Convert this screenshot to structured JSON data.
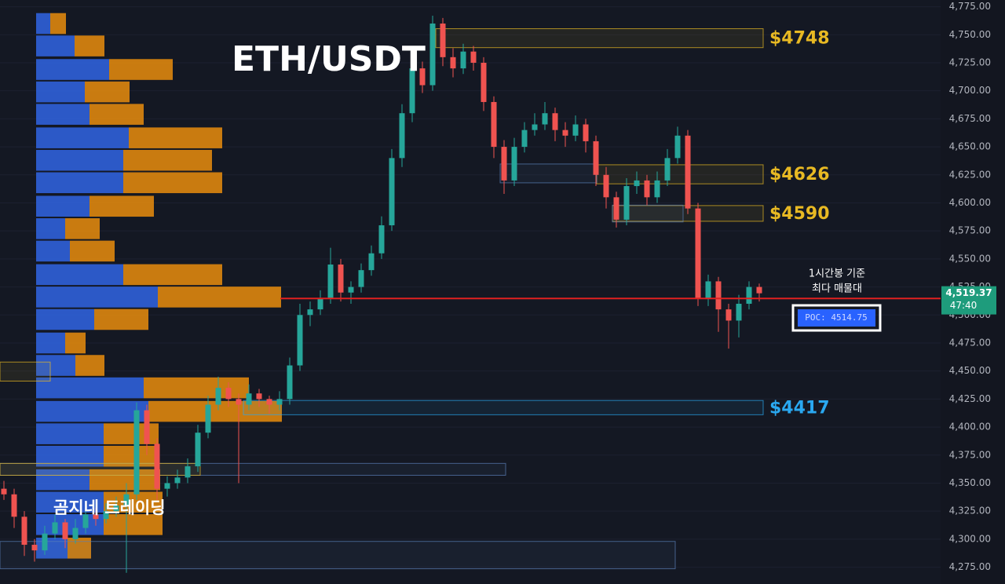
{
  "chart_data": {
    "type": "candlestick",
    "title": "ETH/USDT",
    "watermark": "곰지네 트레이딩",
    "ylim": [
      4260,
      4781
    ],
    "yticks": [
      {
        "value": 4275,
        "label": "4,275.00"
      },
      {
        "value": 4300,
        "label": "4,300.00"
      },
      {
        "value": 4325,
        "label": "4,325.00"
      },
      {
        "value": 4350,
        "label": "4,350.00"
      },
      {
        "value": 4375,
        "label": "4,375.00"
      },
      {
        "value": 4400,
        "label": "4,400.00"
      },
      {
        "value": 4425,
        "label": "4,425.00"
      },
      {
        "value": 4450,
        "label": "4,450.00"
      },
      {
        "value": 4475,
        "label": "4,475.00"
      },
      {
        "value": 4500,
        "label": "4,500.00"
      },
      {
        "value": 4525,
        "label": "4,525.00"
      },
      {
        "value": 4550,
        "label": "4,550.00"
      },
      {
        "value": 4575,
        "label": "4,575.00"
      },
      {
        "value": 4600,
        "label": "4,600.00"
      },
      {
        "value": 4625,
        "label": "4,625.00"
      },
      {
        "value": 4650,
        "label": "4,650.00"
      },
      {
        "value": 4675,
        "label": "4,675.00"
      },
      {
        "value": 4700,
        "label": "4,700.00"
      },
      {
        "value": 4725,
        "label": "4,725.00"
      },
      {
        "value": 4750,
        "label": "4,750.00"
      },
      {
        "value": 4775,
        "label": "4,775.00"
      }
    ],
    "up_color": "#26a69a",
    "down_color": "#ef5350",
    "candles": [
      [
        4345,
        4352,
        4335,
        4340
      ],
      [
        4340,
        4345,
        4310,
        4320
      ],
      [
        4320,
        4325,
        4285,
        4295
      ],
      [
        4295,
        4300,
        4280,
        4290
      ],
      [
        4290,
        4312,
        4286,
        4305
      ],
      [
        4305,
        4322,
        4300,
        4315
      ],
      [
        4315,
        4318,
        4292,
        4300
      ],
      [
        4300,
        4318,
        4296,
        4310
      ],
      [
        4310,
        4330,
        4305,
        4322
      ],
      [
        4322,
        4328,
        4312,
        4318
      ],
      [
        4318,
        4332,
        4314,
        4325
      ],
      [
        4325,
        4338,
        4320,
        4330
      ],
      [
        4330,
        4350,
        4270,
        4340
      ],
      [
        4340,
        4422,
        4335,
        4415
      ],
      [
        4415,
        4420,
        4375,
        4385
      ],
      [
        4385,
        4390,
        4335,
        4345
      ],
      [
        4345,
        4356,
        4338,
        4350
      ],
      [
        4350,
        4362,
        4345,
        4355
      ],
      [
        4355,
        4372,
        4350,
        4365
      ],
      [
        4365,
        4402,
        4360,
        4395
      ],
      [
        4395,
        4428,
        4390,
        4420
      ],
      [
        4420,
        4445,
        4415,
        4435
      ],
      [
        4435,
        4440,
        4418,
        4425
      ],
      [
        4425,
        4430,
        4350,
        4420
      ],
      [
        4420,
        4438,
        4415,
        4430
      ],
      [
        4430,
        4434,
        4418,
        4425
      ],
      [
        4425,
        4428,
        4412,
        4420
      ],
      [
        4420,
        4432,
        4415,
        4425
      ],
      [
        4425,
        4462,
        4420,
        4455
      ],
      [
        4455,
        4510,
        4450,
        4500
      ],
      [
        4500,
        4512,
        4490,
        4505
      ],
      [
        4505,
        4522,
        4500,
        4515
      ],
      [
        4515,
        4560,
        4510,
        4545
      ],
      [
        4545,
        4550,
        4512,
        4520
      ],
      [
        4520,
        4530,
        4510,
        4525
      ],
      [
        4525,
        4546,
        4520,
        4540
      ],
      [
        4540,
        4562,
        4535,
        4555
      ],
      [
        4555,
        4588,
        4550,
        4580
      ],
      [
        4580,
        4648,
        4575,
        4640
      ],
      [
        4640,
        4688,
        4632,
        4680
      ],
      [
        4680,
        4728,
        4672,
        4720
      ],
      [
        4720,
        4726,
        4698,
        4705
      ],
      [
        4705,
        4767,
        4700,
        4760
      ],
      [
        4760,
        4765,
        4722,
        4730
      ],
      [
        4730,
        4738,
        4712,
        4720
      ],
      [
        4720,
        4742,
        4715,
        4735
      ],
      [
        4735,
        4740,
        4718,
        4725
      ],
      [
        4725,
        4730,
        4682,
        4690
      ],
      [
        4690,
        4695,
        4640,
        4650
      ],
      [
        4650,
        4656,
        4608,
        4620
      ],
      [
        4620,
        4658,
        4615,
        4650
      ],
      [
        4650,
        4672,
        4645,
        4665
      ],
      [
        4665,
        4680,
        4660,
        4670
      ],
      [
        4670,
        4690,
        4665,
        4680
      ],
      [
        4680,
        4685,
        4655,
        4665
      ],
      [
        4665,
        4672,
        4650,
        4660
      ],
      [
        4660,
        4678,
        4655,
        4670
      ],
      [
        4670,
        4675,
        4645,
        4655
      ],
      [
        4655,
        4660,
        4615,
        4625
      ],
      [
        4625,
        4632,
        4595,
        4605
      ],
      [
        4605,
        4610,
        4578,
        4585
      ],
      [
        4585,
        4622,
        4580,
        4615
      ],
      [
        4615,
        4628,
        4608,
        4620
      ],
      [
        4620,
        4625,
        4598,
        4605
      ],
      [
        4605,
        4628,
        4600,
        4620
      ],
      [
        4620,
        4648,
        4615,
        4640
      ],
      [
        4640,
        4668,
        4635,
        4660
      ],
      [
        4660,
        4665,
        4590,
        4595
      ],
      [
        4595,
        4600,
        4508,
        4515
      ],
      [
        4515,
        4536,
        4508,
        4530
      ],
      [
        4530,
        4534,
        4485,
        4505
      ],
      [
        4505,
        4510,
        4470,
        4495
      ],
      [
        4495,
        4518,
        4480,
        4510
      ],
      [
        4510,
        4530,
        4505,
        4525
      ],
      [
        4525,
        4528,
        4512,
        4519.37
      ]
    ],
    "volume_profile": {
      "prices": [
        4760,
        4740,
        4719,
        4699,
        4679,
        4658,
        4638,
        4618,
        4597,
        4577,
        4557,
        4536,
        4516,
        4496,
        4475,
        4455,
        4435,
        4414,
        4394,
        4374,
        4353,
        4333,
        4313,
        4292
      ],
      "buy": [
        18,
        49,
        93,
        62,
        68,
        118,
        111,
        111,
        68,
        37,
        43,
        111,
        155,
        74,
        37,
        50,
        137,
        143,
        86,
        86,
        68,
        86,
        86,
        40
      ],
      "sell": [
        20,
        38,
        81,
        57,
        69,
        119,
        113,
        126,
        82,
        44,
        57,
        126,
        157,
        69,
        26,
        37,
        134,
        170,
        70,
        70,
        90,
        75,
        75,
        30
      ],
      "buy_color": "#2f5fd6",
      "sell_color": "#d9840f"
    },
    "zones": [
      {
        "top": 4755.4,
        "bottom": 4738.5,
        "label": "$4748",
        "color": "#e8b923"
      },
      {
        "top": 4634,
        "bottom": 4617,
        "label": "$4626",
        "color": "#e8b923"
      },
      {
        "top": 4597.6,
        "bottom": 4583.6,
        "label": "$4590",
        "color": "#e8b923"
      },
      {
        "top": 4423.7,
        "bottom": 4411,
        "label": "$4417",
        "color": "#2aa8f0"
      },
      {
        "top": 4634.7,
        "bottom": 4617.9,
        "color": "#5a7fb8"
      },
      {
        "top": 4598,
        "bottom": 4583,
        "color": "#5a7fb8"
      },
      {
        "top": 4367.6,
        "bottom": 4357,
        "color": "#5a7fb8"
      },
      {
        "top": 4367.6,
        "bottom": 4357,
        "color": "#e8b923"
      },
      {
        "top": 4458,
        "bottom": 4441,
        "color": "#e8b923"
      },
      {
        "top": 4298,
        "bottom": 4273.6,
        "color": "#5a7fb8"
      }
    ],
    "poc": {
      "value": 4514.75,
      "label": "POC: 4514.75",
      "note": [
        "1시간봉 기준",
        "최다 매물대"
      ],
      "color": "#e02020"
    },
    "last_price": {
      "value": 4519.37,
      "label": "4,519.37",
      "countdown": "47:40",
      "color": "#1e9c7c"
    }
  }
}
